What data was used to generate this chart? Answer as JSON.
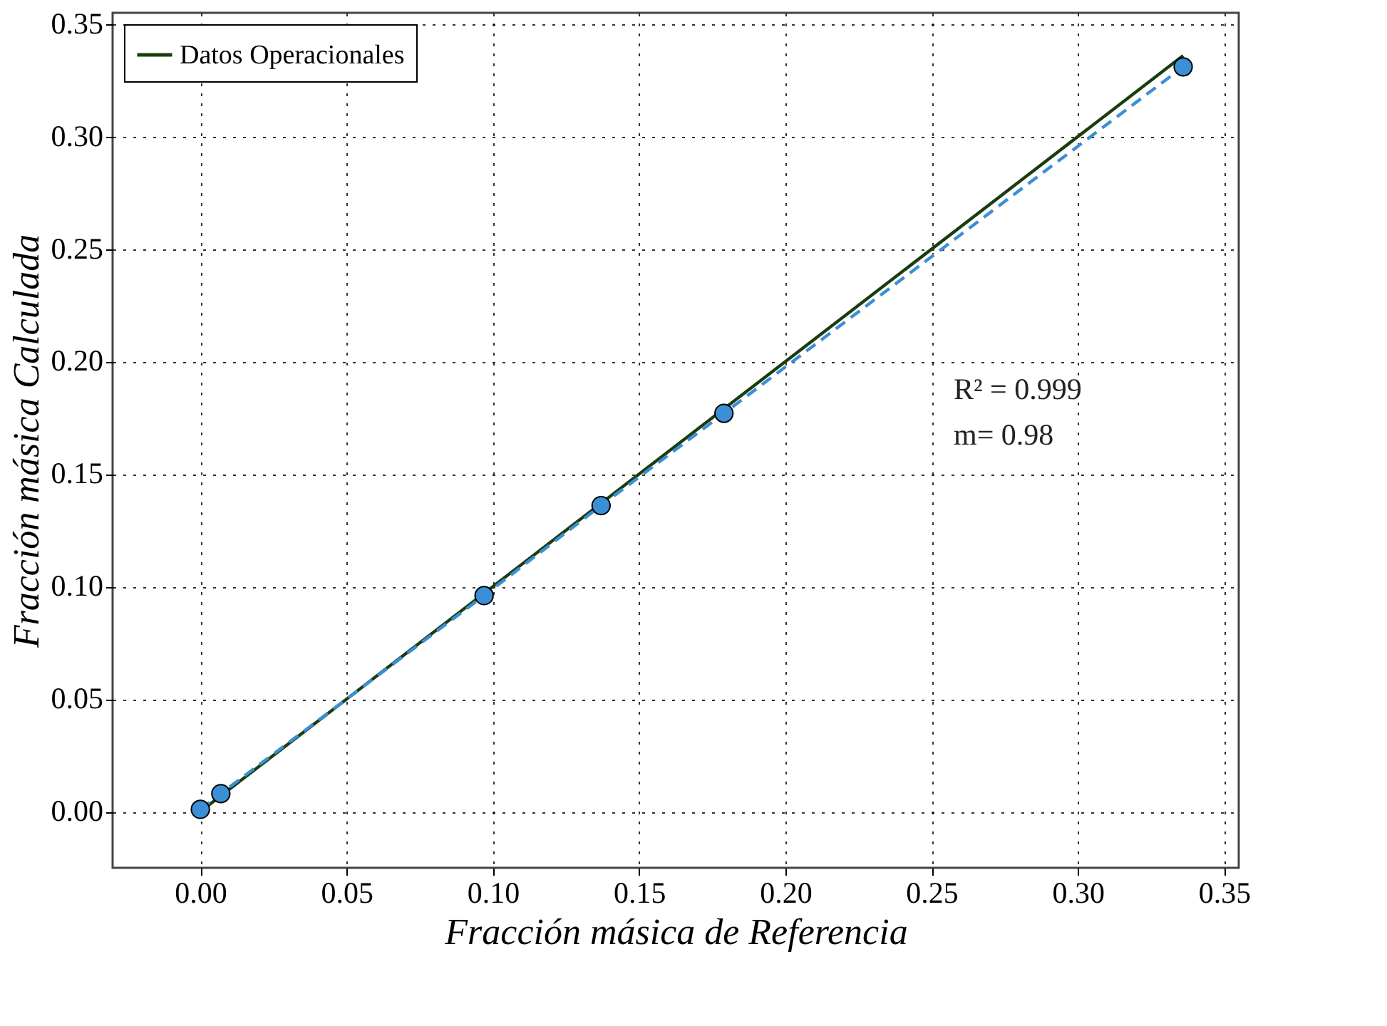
{
  "chart_data": {
    "type": "line",
    "xlabel": "Fracción másica de Referencia",
    "ylabel": "Fracción másica Calculada",
    "series": [
      {
        "name": "Datos Operacionales",
        "color": "#1a3d0f",
        "x": [
          0.0,
          0.336
        ],
        "values": [
          0.0,
          0.336
        ],
        "marker": "none",
        "line_style": "solid"
      },
      {
        "color": "#3a8fd6",
        "x": [
          0.0,
          0.007,
          0.097,
          0.137,
          0.179,
          0.336
        ],
        "values": [
          0.001,
          0.008,
          0.096,
          0.136,
          0.177,
          0.331
        ],
        "marker": "circle",
        "line_style": "dashed"
      }
    ],
    "xlim": [
      -0.03,
      0.355
    ],
    "ylim": [
      -0.025,
      0.355
    ],
    "xticks": [
      {
        "value": 0,
        "label": "0.00"
      },
      0.05,
      {
        "value": 0.1,
        "label": "0.10"
      },
      0.15,
      {
        "value": 0.2,
        "label": "0.20"
      },
      0.25,
      {
        "value": 0.3,
        "label": "0.30"
      },
      0.35
    ],
    "yticks": [
      {
        "value": 0,
        "label": "0.00"
      },
      0.05,
      {
        "value": 0.1,
        "label": "0.10"
      },
      0.15,
      {
        "value": 0.2,
        "label": "0.20"
      },
      0.25,
      {
        "value": 0.3,
        "label": "0.30"
      },
      0.35
    ],
    "annotations": [
      "R² = 0.999",
      "m= 0.98"
    ],
    "grid": true,
    "legend": "top left"
  }
}
